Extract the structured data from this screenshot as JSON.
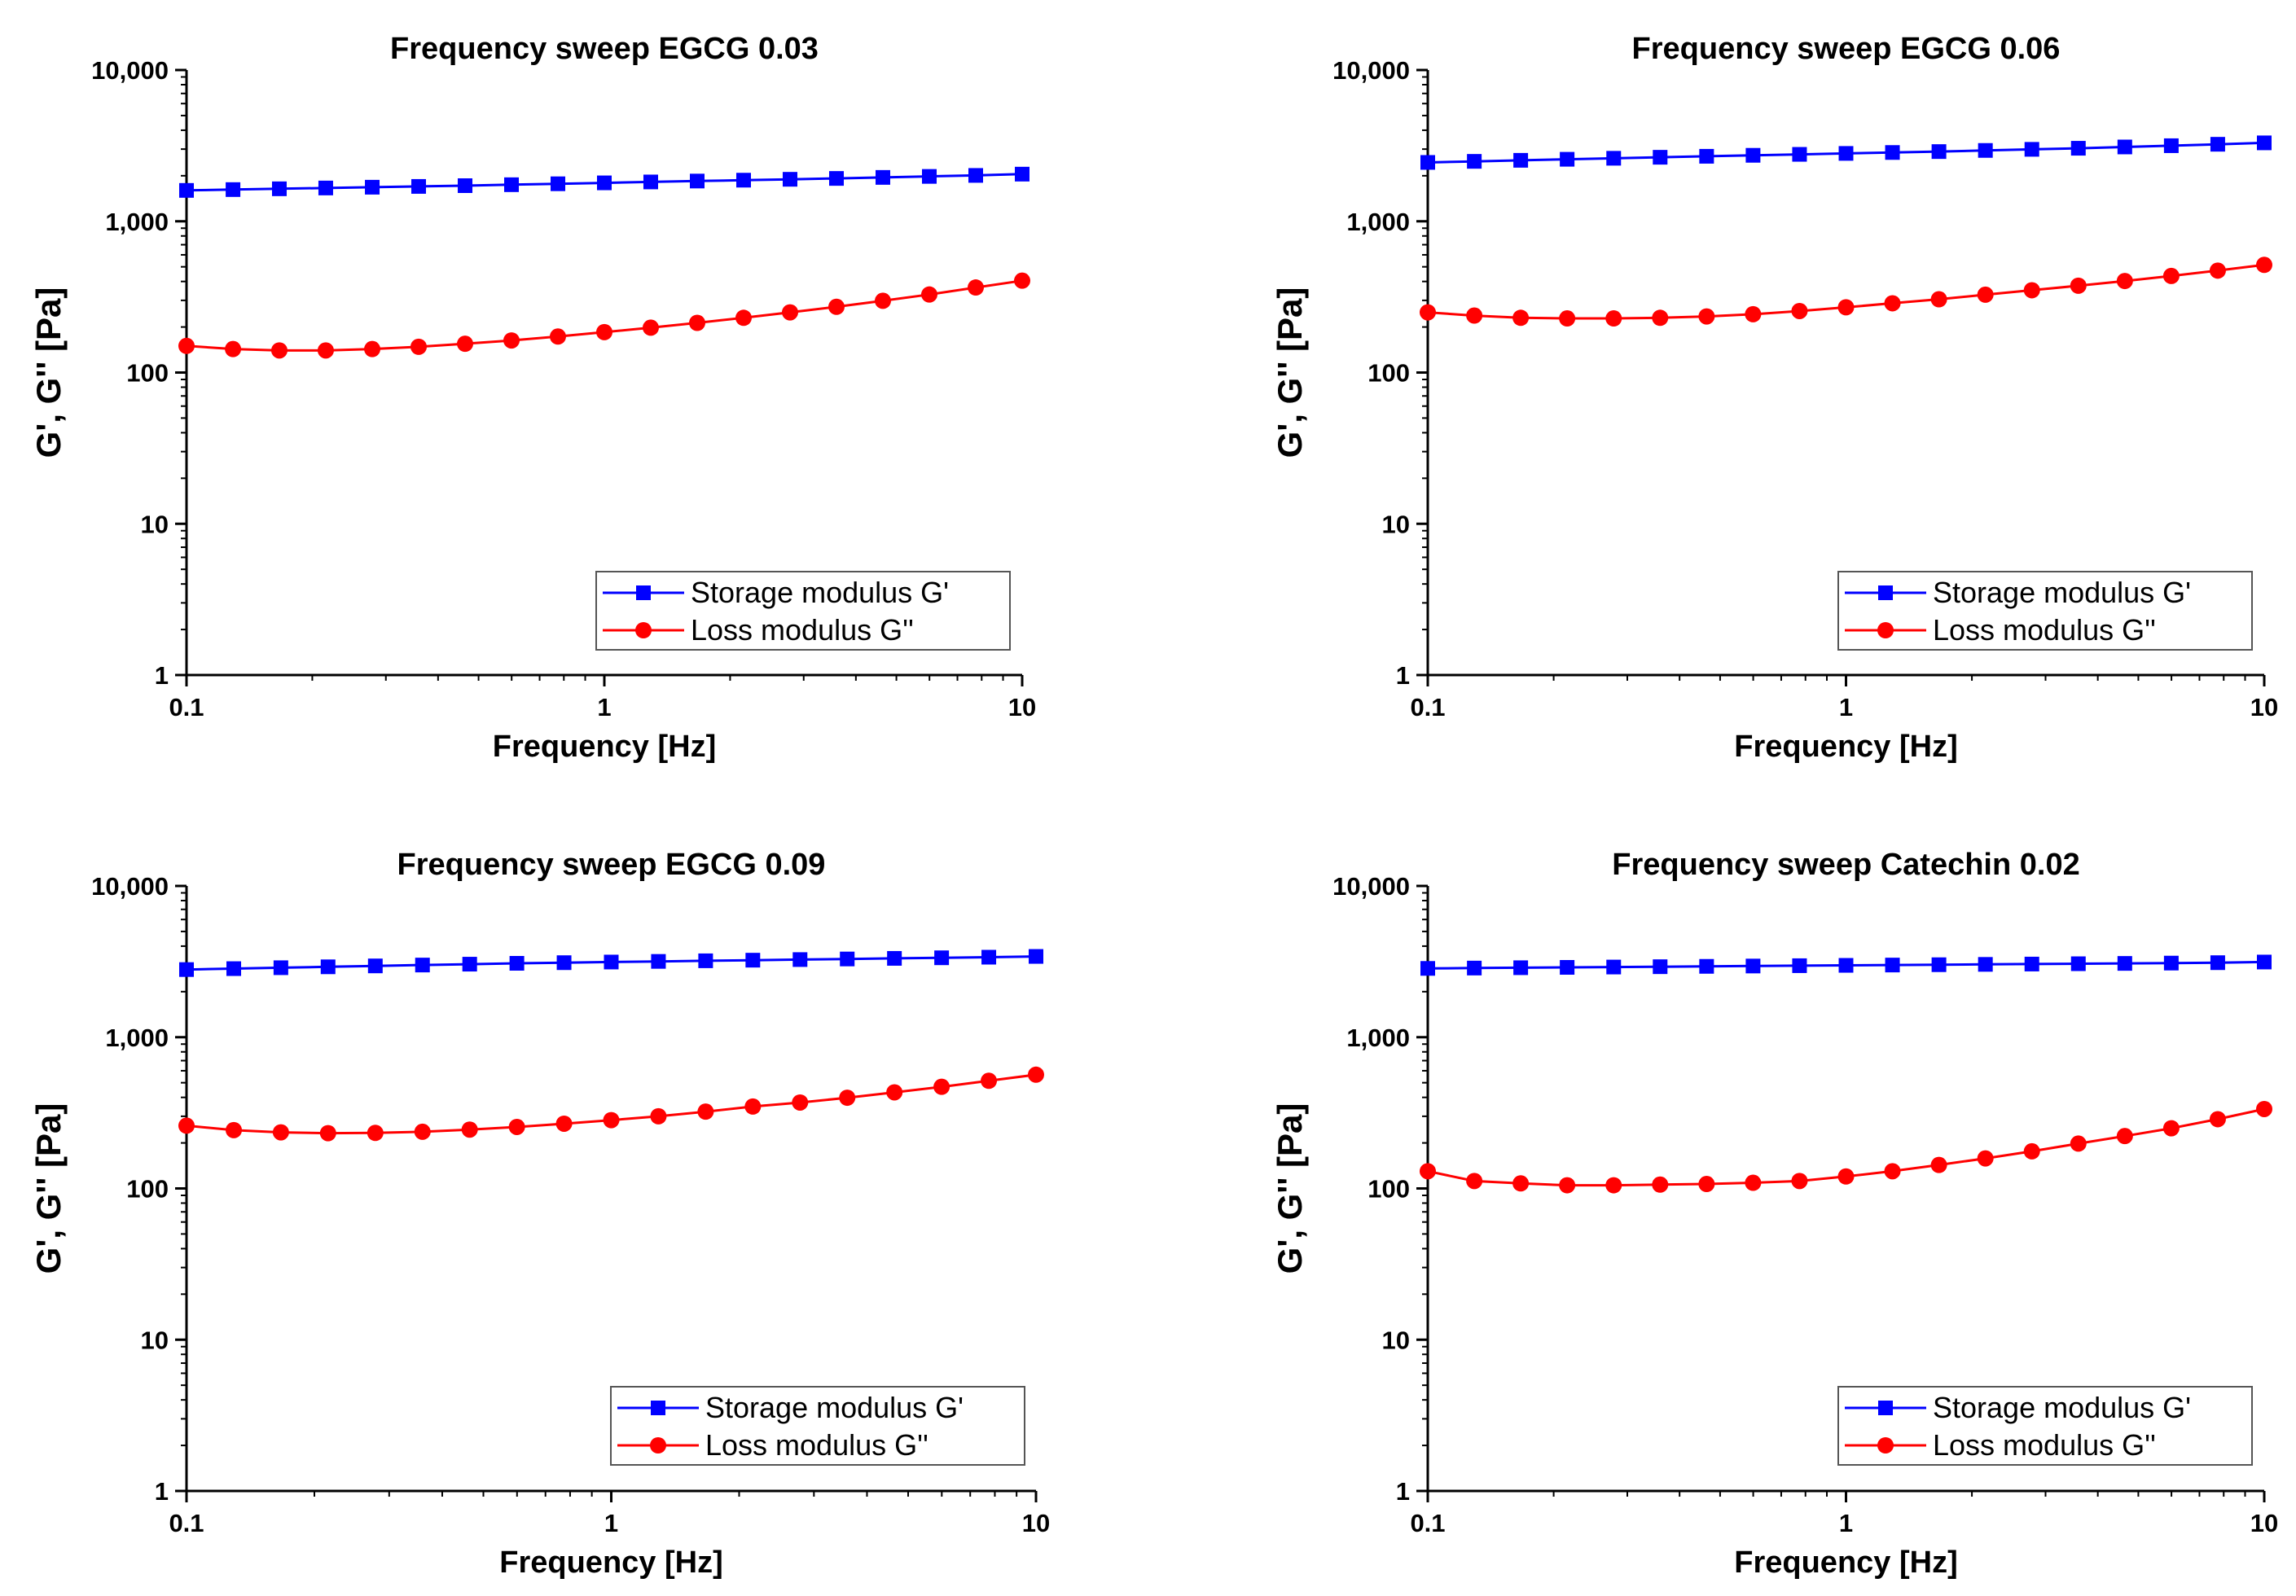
{
  "colors": {
    "storage": "#0000ff",
    "loss": "#ff0000",
    "axis": "#000000"
  },
  "chart_data": [
    {
      "type": "line",
      "title": "Frequency sweep EGCG 0.03",
      "xlabel": "Frequency [Hz]",
      "ylabel": "G', G'' [Pa]",
      "xscale": "log",
      "yscale": "log",
      "xlim": [
        0.1,
        10
      ],
      "ylim": [
        1,
        10000
      ],
      "xticks": [
        0.1,
        1,
        10
      ],
      "xtick_labels": [
        "0.1",
        "1",
        "10"
      ],
      "yticks": [
        1,
        10,
        100,
        1000,
        10000
      ],
      "ytick_labels": [
        "1",
        "10",
        "100",
        "1,000",
        "10,000"
      ],
      "legend_position": "lower-right",
      "grid": false,
      "x": [
        0.1,
        0.1292,
        0.1668,
        0.2154,
        0.2783,
        0.3594,
        0.4642,
        0.5995,
        0.7743,
        1,
        1.2915,
        1.6681,
        2.1544,
        2.7826,
        3.5938,
        4.6416,
        5.9948,
        7.7426,
        10
      ],
      "series": [
        {
          "name": "Storage modulus G'",
          "color": "#0000ff",
          "marker": "square",
          "values": [
            1600,
            1620,
            1640,
            1660,
            1680,
            1700,
            1720,
            1745,
            1770,
            1795,
            1820,
            1845,
            1870,
            1895,
            1920,
            1950,
            1980,
            2010,
            2050
          ]
        },
        {
          "name": "Loss modulus G''",
          "color": "#ff0000",
          "marker": "circle",
          "values": [
            150,
            143,
            140,
            140,
            143,
            148,
            155,
            163,
            173,
            185,
            198,
            213,
            230,
            250,
            272,
            298,
            328,
            365,
            405
          ]
        }
      ]
    },
    {
      "type": "line",
      "title": "Frequency sweep EGCG 0.06",
      "xlabel": "Frequency [Hz]",
      "ylabel": "G', G'' [Pa]",
      "xscale": "log",
      "yscale": "log",
      "xlim": [
        0.1,
        10
      ],
      "ylim": [
        1,
        10000
      ],
      "xticks": [
        0.1,
        1,
        10
      ],
      "xtick_labels": [
        "0.1",
        "1",
        "10"
      ],
      "yticks": [
        1,
        10,
        100,
        1000,
        10000
      ],
      "ytick_labels": [
        "1",
        "10",
        "100",
        "1,000",
        "10,000"
      ],
      "legend_position": "lower-right",
      "grid": false,
      "x": [
        0.1,
        0.1292,
        0.1668,
        0.2154,
        0.2783,
        0.3594,
        0.4642,
        0.5995,
        0.7743,
        1,
        1.2915,
        1.6681,
        2.1544,
        2.7826,
        3.5938,
        4.6416,
        5.9948,
        7.7426,
        10
      ],
      "series": [
        {
          "name": "Storage modulus G'",
          "color": "#0000ff",
          "marker": "square",
          "values": [
            2450,
            2490,
            2530,
            2570,
            2610,
            2650,
            2690,
            2730,
            2770,
            2810,
            2850,
            2890,
            2940,
            2990,
            3040,
            3100,
            3160,
            3230,
            3300
          ]
        },
        {
          "name": "Loss modulus G''",
          "color": "#ff0000",
          "marker": "circle",
          "values": [
            250,
            238,
            230,
            228,
            228,
            230,
            235,
            243,
            255,
            270,
            287,
            305,
            327,
            350,
            375,
            403,
            435,
            472,
            515
          ]
        }
      ]
    },
    {
      "type": "line",
      "title": "Frequency sweep EGCG 0.09",
      "xlabel": "Frequency [Hz]",
      "ylabel": "G', G'' [Pa]",
      "xscale": "log",
      "yscale": "log",
      "xlim": [
        0.1,
        10
      ],
      "ylim": [
        1,
        10000
      ],
      "xticks": [
        0.1,
        1,
        10
      ],
      "xtick_labels": [
        "0.1",
        "1",
        "10"
      ],
      "yticks": [
        1,
        10,
        100,
        1000,
        10000
      ],
      "ytick_labels": [
        "1",
        "10",
        "100",
        "1,000",
        "10,000"
      ],
      "legend_position": "lower-right",
      "grid": false,
      "x": [
        0.1,
        0.1292,
        0.1668,
        0.2154,
        0.2783,
        0.3594,
        0.4642,
        0.5995,
        0.7743,
        1,
        1.2915,
        1.6681,
        2.1544,
        2.7826,
        3.5938,
        4.6416,
        5.9948,
        7.7426,
        10
      ],
      "series": [
        {
          "name": "Storage modulus G'",
          "color": "#0000ff",
          "marker": "square",
          "values": [
            2800,
            2840,
            2880,
            2920,
            2960,
            3000,
            3040,
            3080,
            3110,
            3140,
            3170,
            3200,
            3230,
            3260,
            3290,
            3320,
            3350,
            3380,
            3420
          ]
        },
        {
          "name": "Loss modulus G''",
          "color": "#ff0000",
          "marker": "circle",
          "values": [
            260,
            243,
            235,
            232,
            233,
            237,
            245,
            255,
            268,
            283,
            300,
            322,
            348,
            370,
            398,
            432,
            470,
            515,
            565
          ]
        }
      ]
    },
    {
      "type": "line",
      "title": "Frequency sweep Catechin 0.02",
      "xlabel": "Frequency [Hz]",
      "ylabel": "G', G'' [Pa]",
      "xscale": "log",
      "yscale": "log",
      "xlim": [
        0.1,
        10
      ],
      "ylim": [
        1,
        10000
      ],
      "xticks": [
        0.1,
        1,
        10
      ],
      "xtick_labels": [
        "0.1",
        "1",
        "10"
      ],
      "yticks": [
        1,
        10,
        100,
        1000,
        10000
      ],
      "ytick_labels": [
        "1",
        "10",
        "100",
        "1,000",
        "10,000"
      ],
      "legend_position": "lower-right",
      "grid": false,
      "x": [
        0.1,
        0.1292,
        0.1668,
        0.2154,
        0.2783,
        0.3594,
        0.4642,
        0.5995,
        0.7743,
        1,
        1.2915,
        1.6681,
        2.1544,
        2.7826,
        3.5938,
        4.6416,
        5.9948,
        7.7426,
        10
      ],
      "series": [
        {
          "name": "Storage modulus G'",
          "color": "#0000ff",
          "marker": "square",
          "values": [
            2850,
            2865,
            2880,
            2895,
            2910,
            2925,
            2940,
            2955,
            2970,
            2985,
            3000,
            3015,
            3030,
            3045,
            3060,
            3075,
            3090,
            3110,
            3140
          ]
        },
        {
          "name": "Loss modulus G''",
          "color": "#ff0000",
          "marker": "circle",
          "values": [
            130,
            112,
            108,
            105,
            105,
            106,
            107,
            109,
            112,
            120,
            130,
            143,
            158,
            176,
            198,
            222,
            250,
            287,
            335
          ]
        }
      ]
    }
  ]
}
